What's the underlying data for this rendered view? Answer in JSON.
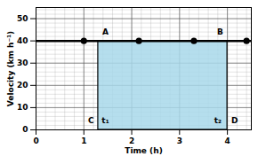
{
  "chart_data": {
    "type": "line",
    "x_label": "Time (h)",
    "y_label": "Velocity (km h⁻¹)",
    "x": [
      0,
      4.5
    ],
    "values": [
      40,
      40
    ],
    "color": "#000000",
    "marker": "circle",
    "points": {
      "x": [
        1,
        2.15,
        3.3,
        4.4
      ],
      "values": [
        40,
        40,
        40,
        40
      ]
    },
    "shaded_region": {
      "x": [
        1.3,
        4
      ],
      "values": [
        0,
        40
      ],
      "color": "#a8d8ea"
    },
    "annotations": [
      {
        "text": "A",
        "x": 1.45,
        "y": 44
      },
      {
        "text": "B",
        "x": 3.85,
        "y": 44
      },
      {
        "text": "C",
        "x": 1.15,
        "y": 4
      },
      {
        "text": "t₁",
        "x": 1.45,
        "y": 4
      },
      {
        "text": "t₂",
        "x": 3.8,
        "y": 4
      },
      {
        "text": "D",
        "x": 4.15,
        "y": 4
      }
    ],
    "xlim": [
      0,
      4.5
    ],
    "xticks": [
      0,
      1,
      2,
      3,
      4
    ],
    "ylim": [
      0,
      55
    ],
    "yticks": [
      0,
      10,
      20,
      30,
      40,
      50
    ],
    "grid": true
  }
}
